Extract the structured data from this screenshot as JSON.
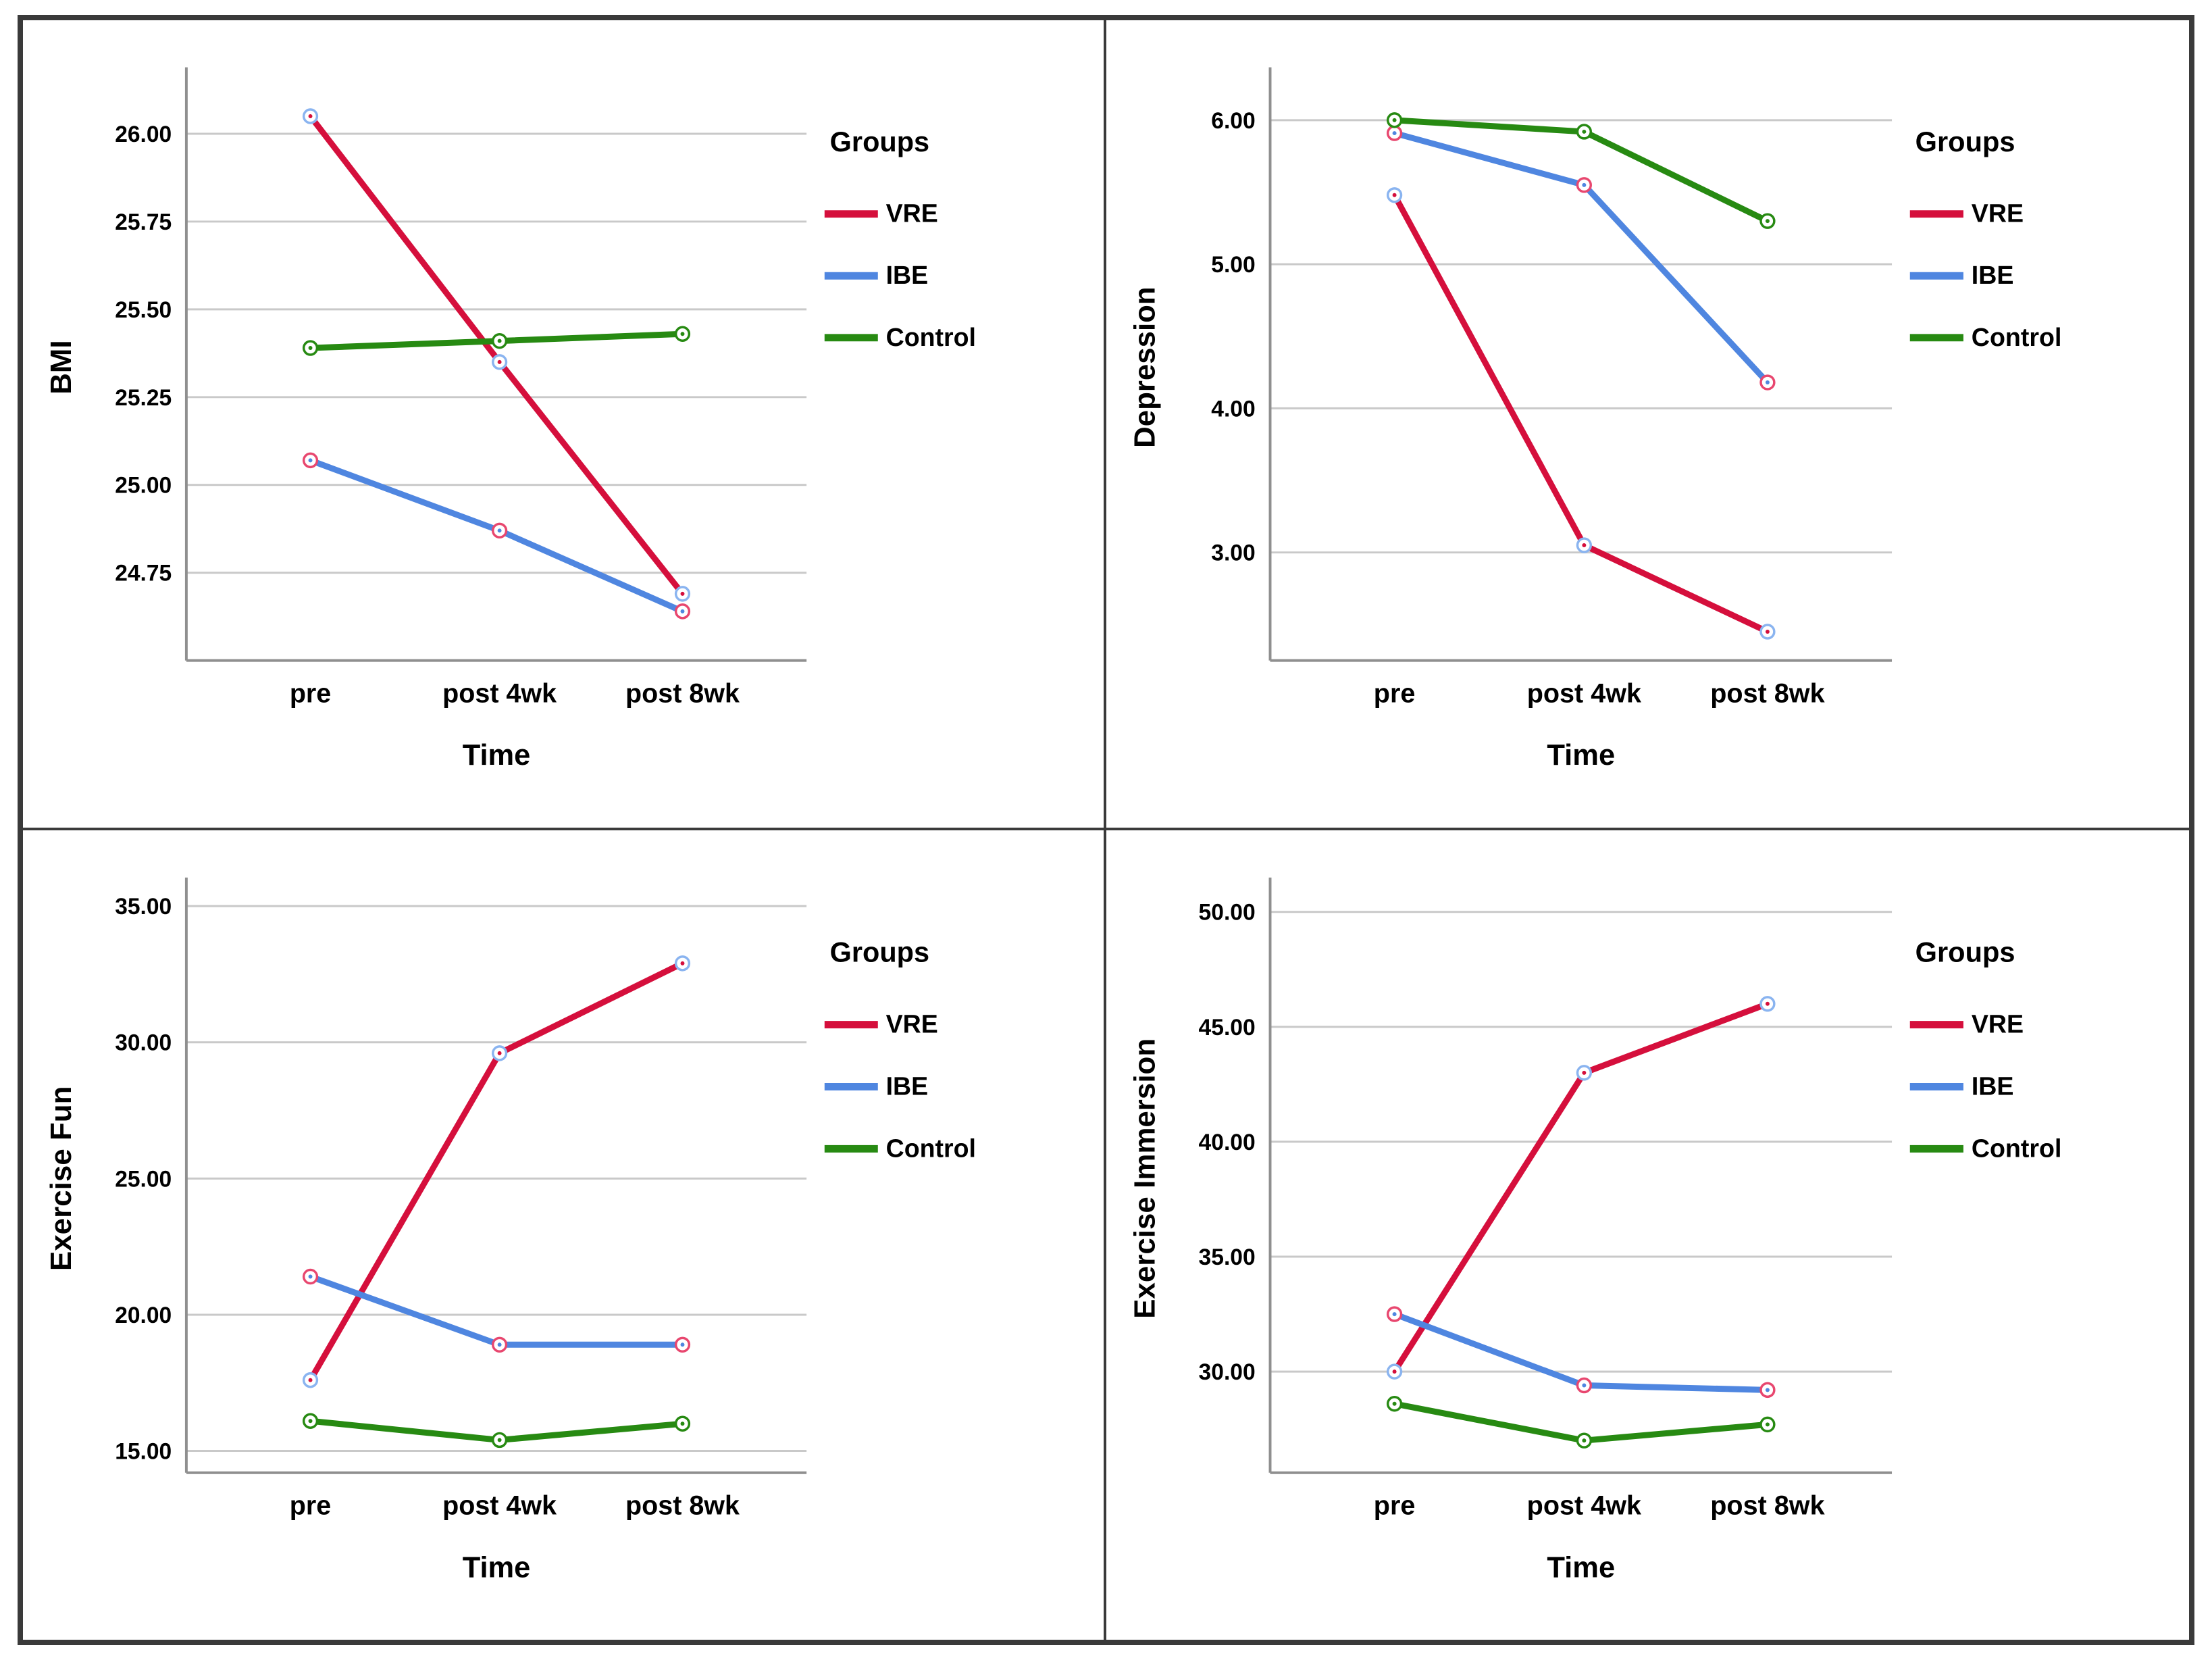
{
  "figure": {
    "legend_title": "Groups",
    "xlabel": "Time",
    "categories": [
      "pre",
      "post 4wk",
      "post 8wk"
    ],
    "series_names": [
      "VRE",
      "IBE",
      "Control"
    ],
    "colors": {
      "vre_line": "#d50f3c",
      "ibe_line": "#4f86e0",
      "control_line": "#278a12",
      "vre_marker_ring": "#8ab4f0",
      "ibe_marker_ring": "#e8476f",
      "control_marker_ring": "#278a12",
      "gridline": "#c9c9c9",
      "axis": "#8f8f8f",
      "frame": "#3a3a3a"
    }
  },
  "chart_data": [
    {
      "type": "line",
      "ylabel": "BMI",
      "xlabel": "Time",
      "categories": [
        "pre",
        "post 4wk",
        "post 8wk"
      ],
      "legend_title": "Groups",
      "grid": true,
      "legend_position": "right",
      "ylim": [
        24.5,
        26.17
      ],
      "yticks": [
        24.75,
        25.0,
        25.25,
        25.5,
        25.75,
        26.0
      ],
      "ytick_labels": [
        "24.75",
        "25.00",
        "25.25",
        "25.50",
        "25.75",
        "26.00"
      ],
      "series": [
        {
          "name": "VRE",
          "values": [
            26.05,
            25.35,
            24.69
          ]
        },
        {
          "name": "IBE",
          "values": [
            25.07,
            24.87,
            24.64
          ]
        },
        {
          "name": "Control",
          "values": [
            25.39,
            25.41,
            25.43
          ]
        }
      ]
    },
    {
      "type": "line",
      "ylabel": "Depression",
      "xlabel": "Time",
      "categories": [
        "pre",
        "post 4wk",
        "post 8wk"
      ],
      "legend_title": "Groups",
      "grid": true,
      "legend_position": "right",
      "ylim": [
        2.25,
        6.32
      ],
      "yticks": [
        3.0,
        4.0,
        5.0,
        6.0
      ],
      "ytick_labels": [
        "3.00",
        "4.00",
        "5.00",
        "6.00"
      ],
      "series": [
        {
          "name": "VRE",
          "values": [
            5.48,
            3.05,
            2.45
          ]
        },
        {
          "name": "IBE",
          "values": [
            5.91,
            5.55,
            4.18
          ]
        },
        {
          "name": "Control",
          "values": [
            6.0,
            5.92,
            5.3
          ]
        }
      ]
    },
    {
      "type": "line",
      "ylabel": "Exercise Fun",
      "xlabel": "Time",
      "categories": [
        "pre",
        "post 4wk",
        "post 8wk"
      ],
      "legend_title": "Groups",
      "grid": true,
      "legend_position": "right",
      "ylim": [
        14.2,
        35.8
      ],
      "yticks": [
        15.0,
        20.0,
        25.0,
        30.0,
        35.0
      ],
      "ytick_labels": [
        "15.00",
        "20.00",
        "25.00",
        "30.00",
        "35.00"
      ],
      "series": [
        {
          "name": "VRE",
          "values": [
            17.6,
            29.6,
            32.9
          ]
        },
        {
          "name": "IBE",
          "values": [
            21.4,
            18.9,
            18.9
          ]
        },
        {
          "name": "Control",
          "values": [
            16.1,
            15.4,
            16.0
          ]
        }
      ]
    },
    {
      "type": "line",
      "ylabel": "Exercise Immersion",
      "xlabel": "Time",
      "categories": [
        "pre",
        "post 4wk",
        "post 8wk"
      ],
      "legend_title": "Groups",
      "grid": true,
      "legend_position": "right",
      "ylim": [
        25.6,
        51.2
      ],
      "yticks": [
        30.0,
        35.0,
        40.0,
        45.0,
        50.0
      ],
      "ytick_labels": [
        "30.00",
        "35.00",
        "40.00",
        "45.00",
        "50.00"
      ],
      "series": [
        {
          "name": "VRE",
          "values": [
            30.0,
            43.0,
            46.0
          ]
        },
        {
          "name": "IBE",
          "values": [
            32.5,
            29.4,
            29.2
          ]
        },
        {
          "name": "Control",
          "values": [
            28.6,
            27.0,
            27.7
          ]
        }
      ]
    }
  ]
}
